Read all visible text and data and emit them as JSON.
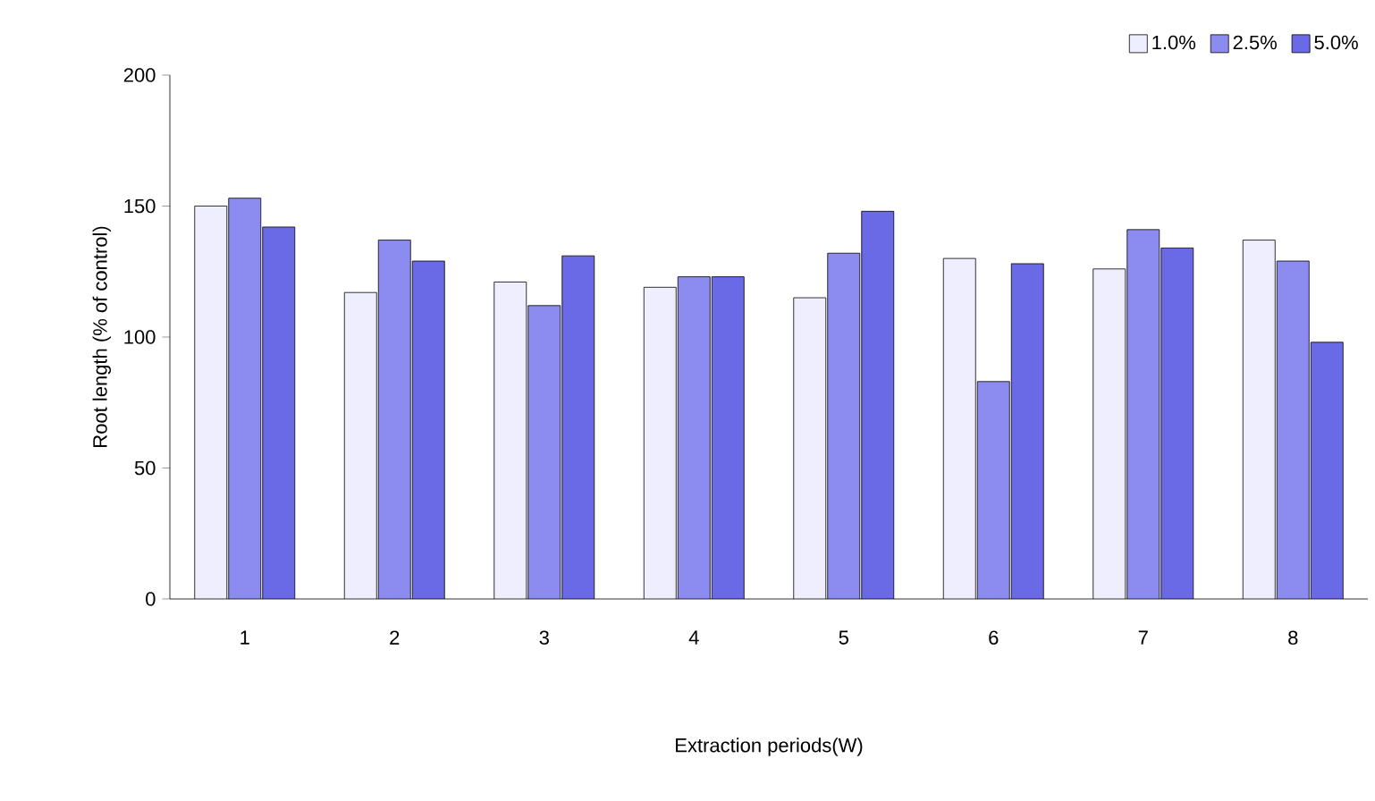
{
  "chart_data": {
    "type": "bar",
    "xlabel": "Extraction periods(W)",
    "ylabel": "Root length (% of control)",
    "categories": [
      "1",
      "2",
      "3",
      "4",
      "5",
      "6",
      "7",
      "8"
    ],
    "series": [
      {
        "name": "1.0%",
        "color": "#eeeeff",
        "values": [
          150,
          117,
          121,
          119,
          115,
          130,
          126,
          137
        ]
      },
      {
        "name": "2.5%",
        "color": "#8c8cf0",
        "values": [
          153,
          137,
          112,
          123,
          132,
          83,
          141,
          129
        ]
      },
      {
        "name": "5.0%",
        "color": "#6a6ae6",
        "values": [
          142,
          129,
          131,
          123,
          148,
          128,
          134,
          98
        ]
      }
    ],
    "ylim": [
      0,
      200
    ],
    "yticks": [
      0,
      50,
      100,
      150,
      200
    ],
    "legend": "top right"
  }
}
